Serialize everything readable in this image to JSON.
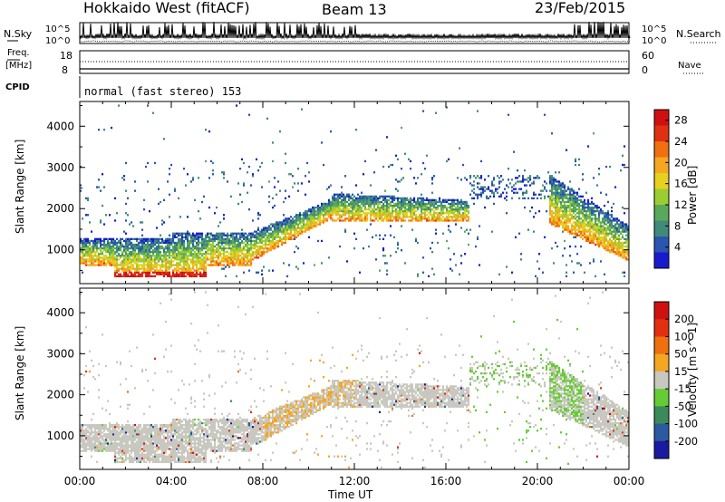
{
  "header": {
    "station": "Hokkaido West (fitACF)",
    "beam": "Beam 13",
    "date": "23/Feb/2015"
  },
  "noise_panel": {
    "left_label": "N.Sky",
    "right_label": "N.Search",
    "left_ticks": [
      "10^5",
      "10^0"
    ],
    "right_ticks": [
      "10^5",
      "10^0"
    ]
  },
  "freq_panel": {
    "left_label_1": "Freq.",
    "left_label_2": "[MHz]",
    "right_label": "Nave",
    "left_ticks": [
      "18",
      "8"
    ],
    "right_ticks": [
      "60",
      "0"
    ]
  },
  "cpid": {
    "label": "CPID",
    "value": "normal (fast stereo) 153"
  },
  "chart_data": [
    {
      "type": "heatmap",
      "name": "power",
      "ylabel": "Slant Range [km]",
      "xlabel": "Time UT",
      "x_ticks": [
        "00:00",
        "04:00",
        "08:00",
        "12:00",
        "16:00",
        "20:00",
        "00:00"
      ],
      "y_ticks": [
        1000,
        2000,
        3000,
        4000
      ],
      "ylim": [
        180,
        4600
      ],
      "xlim_hours": [
        0,
        24
      ],
      "colorbar": {
        "label": "Power [dB]",
        "ticks": [
          4,
          8,
          12,
          16,
          20,
          24,
          28
        ],
        "range": [
          0,
          30
        ],
        "colors": [
          "#1a1acd",
          "#2a55b0",
          "#3f8a7a",
          "#5aa85a",
          "#9acd32",
          "#e6d020",
          "#f5a623",
          "#f07010",
          "#e03010",
          "#d01010"
        ]
      }
    },
    {
      "type": "heatmap",
      "name": "velocity",
      "ylabel": "Slant Range [km]",
      "xlabel": "Time UT",
      "x_ticks": [
        "00:00",
        "04:00",
        "08:00",
        "12:00",
        "16:00",
        "20:00",
        "00:00"
      ],
      "y_ticks": [
        1000,
        2000,
        3000,
        4000
      ],
      "ylim": [
        180,
        4600
      ],
      "xlim_hours": [
        0,
        24
      ],
      "colorbar": {
        "label": "Velocity [m s^-1]",
        "ticks": [
          "200",
          "100",
          "50",
          "15",
          "-15",
          "-50",
          "-100",
          "-200"
        ],
        "colors": [
          "#1a1aa0",
          "#2c5aa0",
          "#3a8a5a",
          "#66cc33",
          "#c8c8c0",
          "#f5a623",
          "#f07010",
          "#e03010",
          "#d01010"
        ]
      }
    }
  ]
}
